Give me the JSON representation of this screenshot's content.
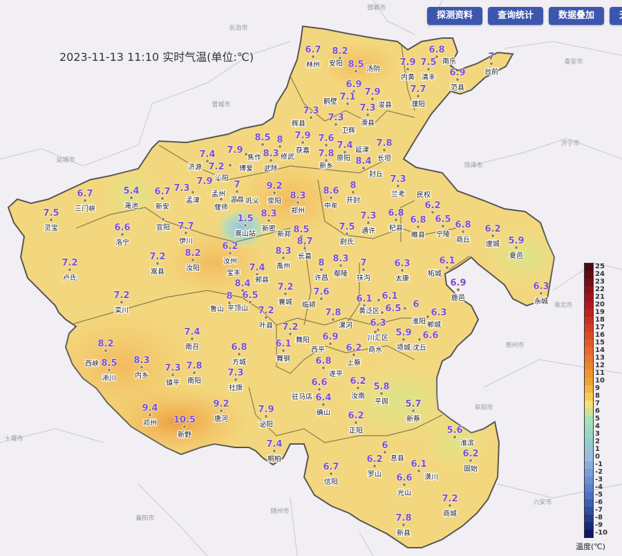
{
  "title": "2023-11-13 11:10 实时气温(单位:℃)",
  "toolbar": {
    "buttons": [
      "探测资料",
      "查询统计",
      "数据叠加",
      "天"
    ]
  },
  "colors": {
    "button": "#3d56ad",
    "value_text": "#7a4fd6",
    "province_fill": "#f3d77e",
    "background": "#f1eef4"
  },
  "legend": {
    "title": "温度(℃)",
    "labels": [
      "25",
      "24",
      "23",
      "22",
      "21",
      "20",
      "19",
      "18",
      "17",
      "16",
      "15",
      "14",
      "13",
      "12",
      "11",
      "10",
      "9",
      "8",
      "7",
      "6",
      "5",
      "4",
      "3",
      "2",
      "1",
      "0",
      "-1",
      "-2",
      "-3",
      "-4",
      "-5",
      "-6",
      "-7",
      "-8",
      "-9",
      "-10"
    ],
    "color_stops": [
      {
        "t": 25,
        "c": "#4e0912"
      },
      {
        "t": 20,
        "c": "#b3161c"
      },
      {
        "t": 15,
        "c": "#e4592b"
      },
      {
        "t": 10,
        "c": "#f0a332"
      },
      {
        "t": 7,
        "c": "#f6df70"
      },
      {
        "t": 5,
        "c": "#a9e3b4"
      },
      {
        "t": 2,
        "c": "#8fcfc8"
      },
      {
        "t": 0,
        "c": "#9cb9e2"
      },
      {
        "t": -5,
        "c": "#4a73c6"
      },
      {
        "t": -10,
        "c": "#0b1860"
      }
    ]
  },
  "nearby_cities": [
    "长治市",
    "邯郸市",
    "晋城市",
    "运城市",
    "菏泽市",
    "济宁市",
    "泰安市",
    "十堰市",
    "襄阳市",
    "随州市",
    "六安市",
    "阜阳市",
    "亳州市",
    "淮北市"
  ],
  "stations": [
    {
      "name": "林州",
      "value": "6.7"
    },
    {
      "name": "安阳",
      "value": "8.2"
    },
    {
      "name": "汤阴",
      "value": "8.5"
    },
    {
      "name": "",
      "value": "6.9"
    },
    {
      "name": "鹤壁",
      "value": "7.1"
    },
    {
      "name": "浚县",
      "value": "7.9"
    },
    {
      "name": "滑县",
      "value": "7.3"
    },
    {
      "name": "内黄",
      "value": "7.9"
    },
    {
      "name": "清丰",
      "value": "7.5"
    },
    {
      "name": "南乐",
      "value": "6.8"
    },
    {
      "name": "范县",
      "value": "6.9"
    },
    {
      "name": "台前",
      "value": "7"
    },
    {
      "name": "濮阳",
      "value": "7.7"
    },
    {
      "name": "辉县",
      "value": "7.3"
    },
    {
      "name": "卫辉",
      "value": "7.3"
    },
    {
      "name": "获嘉",
      "value": "7.9"
    },
    {
      "name": "新乡",
      "value": "7.6"
    },
    {
      "name": "原阳",
      "value": "7.8"
    },
    {
      "name": "延津",
      "value": "7.4"
    },
    {
      "name": "长垣",
      "value": "7.8"
    },
    {
      "name": "封丘",
      "value": "8.4"
    },
    {
      "name": "焦作",
      "value": "8.5"
    },
    {
      "name": "修武",
      "value": "8"
    },
    {
      "name": "博爱",
      "value": "7.9"
    },
    {
      "name": "沁阳",
      "value": "7.2"
    },
    {
      "name": "济源",
      "value": "7.4"
    },
    {
      "name": "孟州",
      "value": "7.9"
    },
    {
      "name": "温县",
      "value": "7"
    },
    {
      "name": "武陟",
      "value": "8.3"
    },
    {
      "name": "三门峡",
      "value": "6.7"
    },
    {
      "name": "灵宝",
      "value": "7.5"
    },
    {
      "name": "渑池",
      "value": "5.4"
    },
    {
      "name": "新安",
      "value": "6.7"
    },
    {
      "name": "洛宁",
      "value": "6.6"
    },
    {
      "name": "孟津",
      "value": "7.3"
    },
    {
      "name": "嵩山站",
      "value": "1.5"
    },
    {
      "name": "新密",
      "value": "8.3"
    },
    {
      "name": "荥阳",
      "value": "9.2"
    },
    {
      "name": "郑州",
      "value": "8.3"
    },
    {
      "name": "中牟",
      "value": "8.6"
    },
    {
      "name": "开封",
      "value": "8"
    },
    {
      "name": "兰考",
      "value": "7.3"
    },
    {
      "name": "新郑",
      "value": "8.5"
    },
    {
      "name": "长葛",
      "value": "8.7"
    },
    {
      "name": "尉氏",
      "value": "7.5"
    },
    {
      "name": "通许",
      "value": "7.3"
    },
    {
      "name": "杞县",
      "value": "6.8"
    },
    {
      "name": "睢县",
      "value": "6.8"
    },
    {
      "name": "民权",
      "value": "6.2"
    },
    {
      "name": "宁陵",
      "value": "6.5"
    },
    {
      "name": "商丘",
      "value": "6.8"
    },
    {
      "name": "虞城",
      "value": "6.2"
    },
    {
      "name": "夏邑",
      "value": "5.9"
    },
    {
      "name": "永城",
      "value": "6.3"
    },
    {
      "name": "柘城",
      "value": "6.1"
    },
    {
      "name": "鹿邑",
      "value": "6.9"
    },
    {
      "name": "太康",
      "value": "6.3"
    },
    {
      "name": "扶沟",
      "value": "7"
    },
    {
      "name": "鄢陵",
      "value": "8.3"
    },
    {
      "name": "许昌",
      "value": "8"
    },
    {
      "name": "禹州",
      "value": "8.3"
    },
    {
      "name": "郏县",
      "value": "7.4"
    },
    {
      "name": "宝丰",
      "value": "8.4"
    },
    {
      "name": "平顶山",
      "value": "6.5"
    },
    {
      "name": "鲁山",
      "value": "8"
    },
    {
      "name": "叶县",
      "value": "7.2"
    },
    {
      "name": "襄城",
      "value": "7.2"
    },
    {
      "name": "临颍",
      "value": "7.6"
    },
    {
      "name": "漯河",
      "value": "7.8"
    },
    {
      "name": "舞阳",
      "value": "7.2"
    },
    {
      "name": "舞钢",
      "value": "6.1"
    },
    {
      "name": "黄泛区",
      "value": "6.1"
    },
    {
      "name": "",
      "value": "6.1"
    },
    {
      "name": "",
      "value": "6.5"
    },
    {
      "name": "川汇区",
      "value": "6.3"
    },
    {
      "name": "淮阳",
      "value": "6"
    },
    {
      "name": "郸城",
      "value": "6.3"
    },
    {
      "name": "项城",
      "value": "5.9"
    },
    {
      "name": "沈丘",
      "value": "6.6"
    },
    {
      "name": "西平",
      "value": "6.9"
    },
    {
      "name": "上蔡",
      "value": "6.2"
    },
    {
      "name": "遂平",
      "value": "6.8"
    },
    {
      "name": "汝南",
      "value": "6.2"
    },
    {
      "name": "平舆",
      "value": "5.8"
    },
    {
      "name": "驻马店",
      "value": "6.6"
    },
    {
      "name": "确山",
      "value": "6.4"
    },
    {
      "name": "正阳",
      "value": "6.2"
    },
    {
      "name": "新蔡",
      "value": "5.7"
    },
    {
      "name": "泌阳",
      "value": "7.9"
    },
    {
      "name": "桐柏",
      "value": "7.4"
    },
    {
      "name": "淮滨",
      "value": "5.6"
    },
    {
      "name": "固始",
      "value": "6.2"
    },
    {
      "name": "息县",
      "value": "6"
    },
    {
      "name": "罗山",
      "value": "6.2"
    },
    {
      "name": "信阳",
      "value": "6.7"
    },
    {
      "name": "潢川",
      "value": "6.1"
    },
    {
      "name": "光山",
      "value": "6.6"
    },
    {
      "name": "商城",
      "value": "7.2"
    },
    {
      "name": "新县",
      "value": "7.8"
    },
    {
      "name": "西峡",
      "value": "8.2"
    },
    {
      "name": "淅川",
      "value": "8.5"
    },
    {
      "name": "内乡",
      "value": "8.3"
    },
    {
      "name": "镇平",
      "value": "7.3"
    },
    {
      "name": "南阳",
      "value": "7.8"
    },
    {
      "name": "南召",
      "value": "7.4"
    },
    {
      "name": "方城",
      "value": "6.8"
    },
    {
      "name": "社旗",
      "value": "7.3"
    },
    {
      "name": "邓州",
      "value": "9.4"
    },
    {
      "name": "新野",
      "value": "10.5"
    },
    {
      "name": "唐河",
      "value": "9.2"
    },
    {
      "name": "栾川",
      "value": "7.2"
    },
    {
      "name": "卢氏",
      "value": "7.2"
    },
    {
      "name": "嵩县",
      "value": "7.2"
    },
    {
      "name": "汝阳",
      "value": "8.2"
    },
    {
      "name": "伊川",
      "value": "7.7"
    },
    {
      "name": "汝州",
      "value": "6.2"
    },
    {
      "name": "宜阳",
      "value": ""
    },
    {
      "name": "偃师",
      "value": ""
    },
    {
      "name": "巩义",
      "value": ""
    },
    {
      "name": "商水",
      "value": ""
    }
  ]
}
